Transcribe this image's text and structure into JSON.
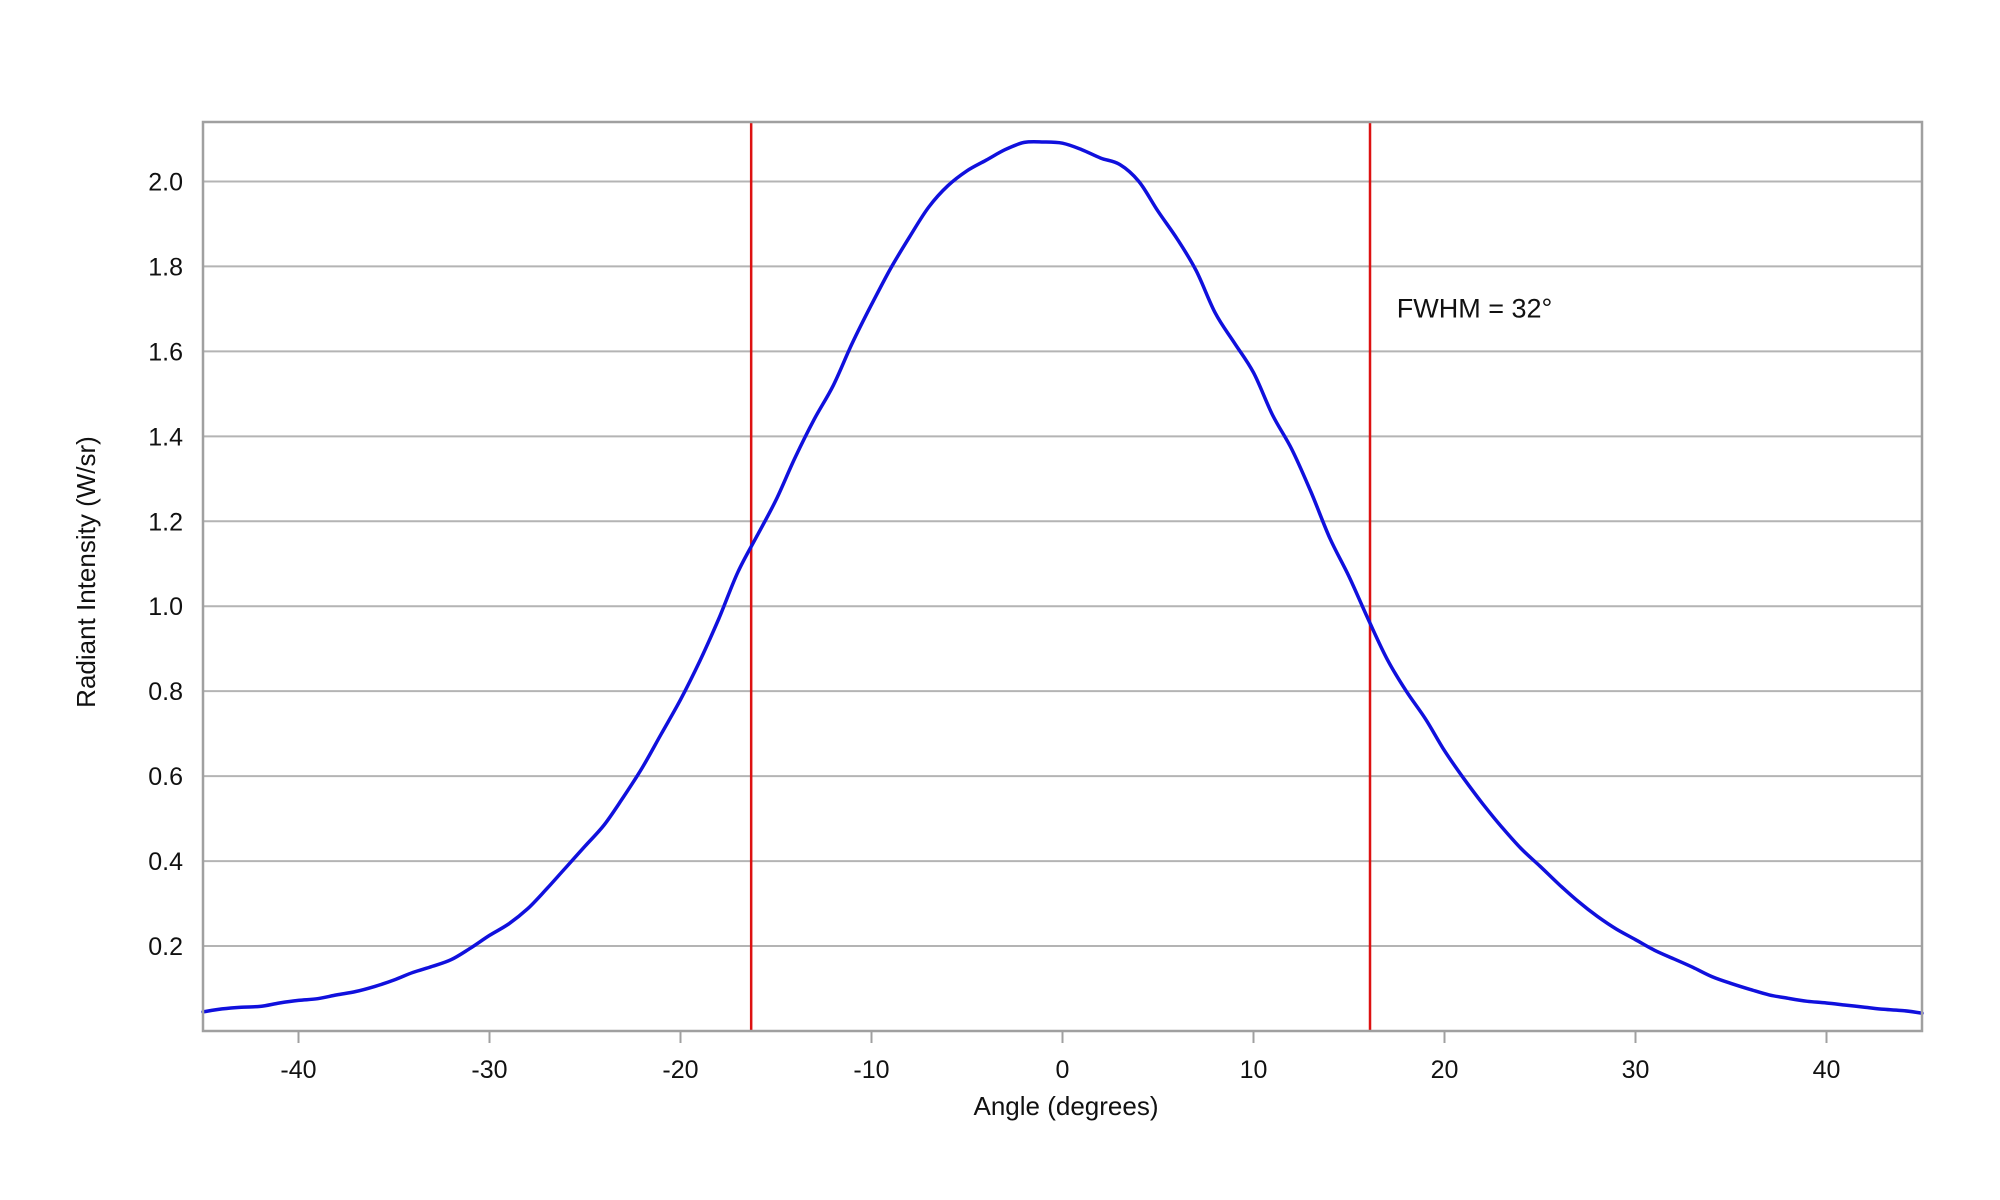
{
  "chart_data": {
    "type": "line",
    "title": "",
    "xlabel": "Angle (degrees)",
    "ylabel": "Radiant Intensity (W/sr)",
    "xlim": [
      -45,
      45
    ],
    "ylim": [
      0,
      2.14
    ],
    "xticks": [
      {
        "value": -40,
        "label": "-40"
      },
      {
        "value": -30,
        "label": "-30"
      },
      {
        "value": -20,
        "label": "-20"
      },
      {
        "value": -10,
        "label": "-10"
      },
      {
        "value": 0,
        "label": "0"
      },
      {
        "value": 10,
        "label": "10"
      },
      {
        "value": 20,
        "label": "20"
      },
      {
        "value": 30,
        "label": "30"
      },
      {
        "value": 40,
        "label": "40"
      }
    ],
    "yticks": [
      {
        "value": 0.2,
        "label": "0.2"
      },
      {
        "value": 0.4,
        "label": "0.4"
      },
      {
        "value": 0.6,
        "label": "0.6"
      },
      {
        "value": 0.8,
        "label": "0.8"
      },
      {
        "value": 1.0,
        "label": "1.0"
      },
      {
        "value": 1.2,
        "label": "1.2"
      },
      {
        "value": 1.4,
        "label": "1.4"
      },
      {
        "value": 1.6,
        "label": "1.6"
      },
      {
        "value": 1.8,
        "label": "1.8"
      },
      {
        "value": 2.0,
        "label": "2.0"
      }
    ],
    "grid": "horizontal",
    "series": [
      {
        "color": "#1010dd",
        "x": [
          -45,
          -44,
          -43,
          -42,
          -41,
          -40,
          -39,
          -38,
          -37,
          -36,
          -35,
          -34,
          -33,
          -32,
          -31,
          -30,
          -29,
          -28,
          -27,
          -26,
          -25,
          -24,
          -23,
          -22,
          -21,
          -20,
          -19,
          -18,
          -17,
          -16,
          -15,
          -14,
          -13,
          -12,
          -11,
          -10,
          -9,
          -8,
          -7,
          -6,
          -5,
          -4,
          -3,
          -2,
          -1,
          0,
          1,
          2,
          3,
          4,
          5,
          6,
          7,
          8,
          9,
          10,
          11,
          12,
          13,
          14,
          15,
          16,
          17,
          18,
          19,
          20,
          21,
          22,
          23,
          24,
          25,
          26,
          27,
          28,
          29,
          30,
          31,
          32,
          33,
          34,
          35,
          36,
          37,
          38,
          39,
          40,
          41,
          42,
          43,
          44,
          45
        ],
        "y": [
          0.045,
          0.052,
          0.056,
          0.058,
          0.066,
          0.072,
          0.076,
          0.085,
          0.093,
          0.105,
          0.12,
          0.138,
          0.152,
          0.168,
          0.195,
          0.225,
          0.252,
          0.288,
          0.335,
          0.385,
          0.435,
          0.485,
          0.55,
          0.62,
          0.7,
          0.78,
          0.87,
          0.97,
          1.08,
          1.165,
          1.25,
          1.35,
          1.44,
          1.52,
          1.62,
          1.71,
          1.795,
          1.87,
          1.94,
          1.99,
          2.025,
          2.05,
          2.075,
          2.092,
          2.093,
          2.09,
          2.075,
          2.055,
          2.04,
          2.0,
          1.93,
          1.865,
          1.79,
          1.69,
          1.62,
          1.55,
          1.45,
          1.37,
          1.27,
          1.16,
          1.07,
          0.97,
          0.875,
          0.8,
          0.735,
          0.66,
          0.595,
          0.535,
          0.48,
          0.43,
          0.388,
          0.345,
          0.305,
          0.27,
          0.24,
          0.215,
          0.19,
          0.17,
          0.15,
          0.128,
          0.112,
          0.098,
          0.085,
          0.077,
          0.07,
          0.066,
          0.061,
          0.056,
          0.051,
          0.048,
          0.042
        ]
      }
    ],
    "vlines": [
      {
        "x": -16.3,
        "color": "#dd1111"
      },
      {
        "x": 16.1,
        "color": "#dd1111"
      }
    ],
    "annotations": [
      {
        "text": "FWHM = 32°",
        "x": 17.5,
        "y": 1.68
      }
    ]
  }
}
